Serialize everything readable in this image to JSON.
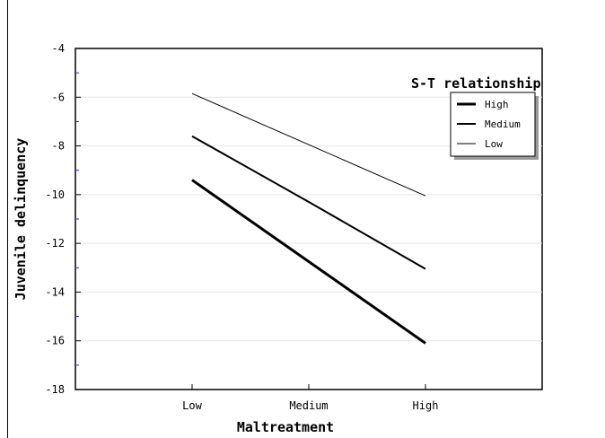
{
  "chart_data": {
    "type": "line",
    "xlabel": "Maltreatment",
    "ylabel": "Juvenile delinquency",
    "categories": [
      "Low",
      "Medium",
      "High"
    ],
    "ylim": [
      -18,
      -4
    ],
    "yticks": [
      -18,
      -16,
      -14,
      -12,
      -10,
      -8,
      -6,
      -4
    ],
    "grid": true,
    "legend": {
      "title": "S-T relationship",
      "placement": "top-right"
    },
    "series": [
      {
        "name": "High",
        "values": [
          -9.4,
          -12.75,
          -16.1
        ],
        "line_width": 3
      },
      {
        "name": "Medium",
        "values": [
          -7.6,
          -10.3,
          -13.05
        ],
        "line_width": 2
      },
      {
        "name": "Low",
        "values": [
          -5.85,
          -7.95,
          -10.05
        ],
        "line_width": 1
      }
    ]
  }
}
